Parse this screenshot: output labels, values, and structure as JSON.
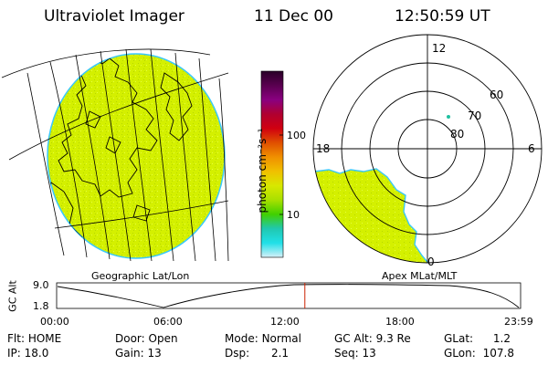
{
  "header": {
    "instrument": "Ultraviolet Imager",
    "date": "11 Dec 00",
    "time": "12:50:59 UT"
  },
  "colors": {
    "fill": "#d4f000",
    "edge": "#39c8ff",
    "speckle": "#b6d800",
    "timeline_marker": "#cc2200"
  },
  "globe": {
    "caption": "Geographic Lat/Lon"
  },
  "colorbar": {
    "unit_label": "photon cm⁻²s⁻¹",
    "tick_100": "100",
    "tick_10": "10",
    "stops": [
      "#2a0028",
      "#5a0050",
      "#8a0080",
      "#b00030",
      "#d00010",
      "#e05000",
      "#f09000",
      "#f0c000",
      "#d8e800",
      "#a8e000",
      "#40d000",
      "#20c8b0",
      "#20e0e8",
      "#d8f0f8"
    ]
  },
  "polar": {
    "caption": "Apex MLat/MLT",
    "mlt_12": "12",
    "mlt_18": "18",
    "mlt_6": "6",
    "mlt_0": "0",
    "lat_60": "60",
    "lat_70": "70",
    "lat_80": "80"
  },
  "timeline": {
    "y_axis_label": "GC Alt",
    "y_top": "9.0",
    "y_bottom": "1.8",
    "ticks": [
      "00:00",
      "06:00",
      "12:00",
      "18:00",
      "23:59"
    ],
    "current_time_fraction": 0.535
  },
  "status": {
    "flt_label": "Flt:",
    "flt_value": "HOME",
    "ip_label": "IP:",
    "ip_value": "18.0",
    "door_label": "Door:",
    "door_value": "Open",
    "gain_label": "Gain:",
    "gain_value": "13",
    "mode_label": "Mode:",
    "mode_value": "Normal",
    "dsp_label": "Dsp:",
    "dsp_value": "2.1",
    "gcalt_label": "GC Alt:",
    "gcalt_value": "9.3 Re",
    "seq_label": "Seq:",
    "seq_value": "13",
    "glat_label": "GLat:",
    "glat_value": "1.2",
    "glon_label": "GLon:",
    "glon_value": "107.8"
  }
}
